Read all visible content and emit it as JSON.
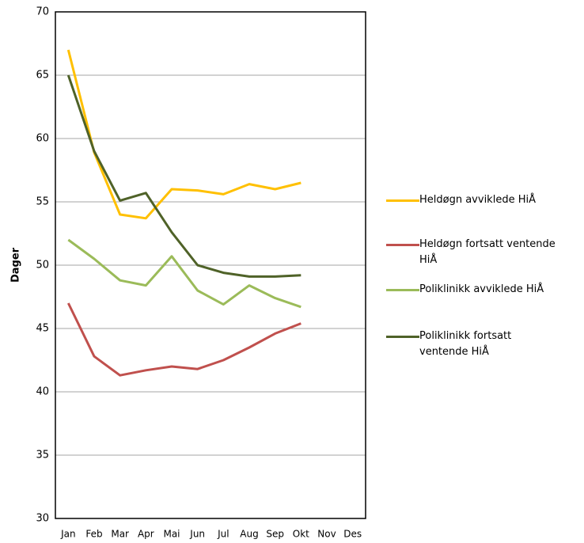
{
  "chart_data": {
    "type": "line",
    "y_label": "Dager",
    "categories": [
      "Jan",
      "Feb",
      "Mar",
      "Apr",
      "Mai",
      "Jun",
      "Jul",
      "Aug",
      "Sep",
      "Okt",
      "Nov",
      "Des"
    ],
    "series": [
      {
        "name": "Heldøgn avviklede HiÅ",
        "color": "#ffc000",
        "values": [
          67,
          58.9,
          54,
          53.7,
          56,
          55.9,
          55.6,
          56.4,
          56,
          56.5,
          null,
          null
        ]
      },
      {
        "name": "Heldøgn fortsatt ventende HiÅ",
        "color": "#c0504d",
        "values": [
          47,
          42.8,
          41.3,
          41.7,
          42,
          41.8,
          42.5,
          43.5,
          44.6,
          45.4,
          null,
          null
        ]
      },
      {
        "name": "Poliklinikk avviklede HiÅ",
        "color": "#9bbb59",
        "values": [
          52,
          50.5,
          48.8,
          48.4,
          50.7,
          48,
          46.9,
          48.4,
          47.4,
          46.7,
          null,
          null
        ]
      },
      {
        "name": "Poliklinikk fortsatt ventende HiÅ",
        "color": "#4f6228",
        "values": [
          65,
          59,
          55.1,
          55.7,
          52.6,
          50,
          49.4,
          49.1,
          49.1,
          49.2,
          null,
          null
        ]
      }
    ],
    "ylim": [
      30,
      70
    ],
    "yticks": [
      30,
      35,
      40,
      45,
      50,
      55,
      60,
      65,
      70
    ],
    "grid": true,
    "legend": "right"
  }
}
